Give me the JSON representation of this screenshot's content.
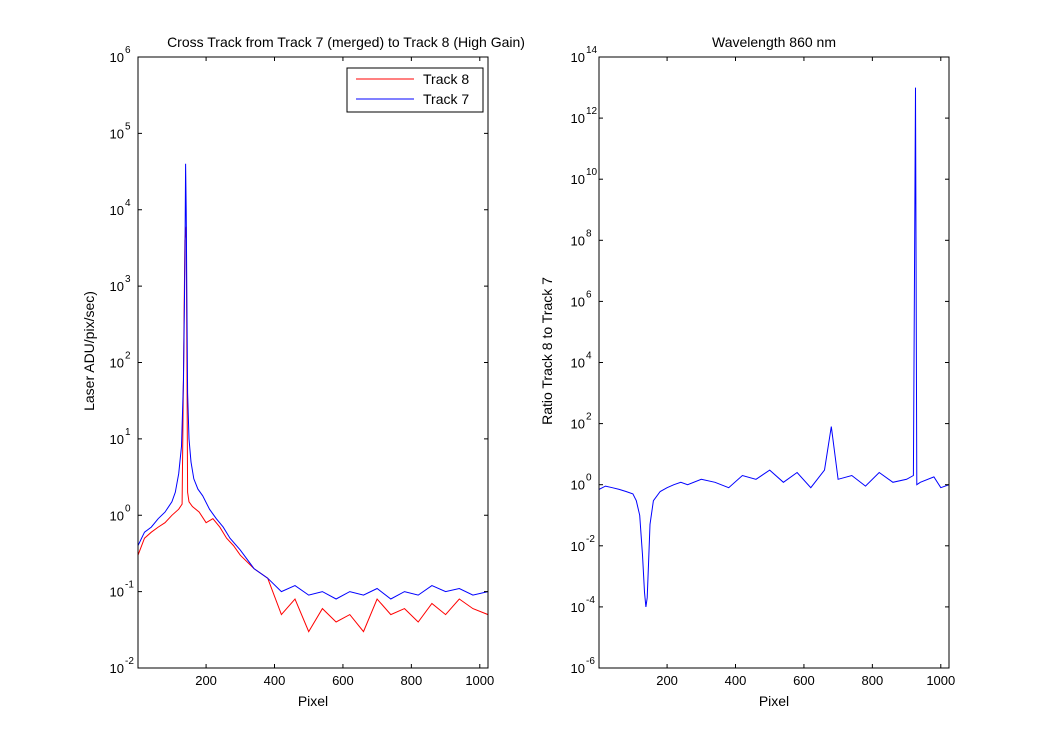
{
  "chart_data": [
    {
      "type": "line",
      "title": "Cross Track from Track 7 (merged) to Track 8 (High Gain)",
      "xlabel": "Pixel",
      "ylabel": "Laser ADU/pix/sec)",
      "xlim": [
        1,
        1024
      ],
      "ylim": [
        0.01,
        1000000
      ],
      "yscale": "log",
      "x_ticks": [
        200,
        400,
        600,
        800,
        1000
      ],
      "y_ticks": [
        {
          "base": "10",
          "exp": "-2",
          "value": 0.01
        },
        {
          "base": "10",
          "exp": "-1",
          "value": 0.1
        },
        {
          "base": "10",
          "exp": "0",
          "value": 1
        },
        {
          "base": "10",
          "exp": "1",
          "value": 10
        },
        {
          "base": "10",
          "exp": "2",
          "value": 100
        },
        {
          "base": "10",
          "exp": "3",
          "value": 1000
        },
        {
          "base": "10",
          "exp": "4",
          "value": 10000
        },
        {
          "base": "10",
          "exp": "5",
          "value": 100000
        },
        {
          "base": "10",
          "exp": "6",
          "value": 1000000
        }
      ],
      "legend_position": "top-right",
      "series": [
        {
          "name": "Track 8",
          "color": "#ff0000",
          "x": [
            1,
            20,
            40,
            60,
            80,
            100,
            120,
            130,
            138,
            142,
            146,
            150,
            160,
            180,
            200,
            220,
            240,
            260,
            280,
            300,
            340,
            380,
            420,
            460,
            500,
            540,
            580,
            620,
            660,
            700,
            740,
            780,
            820,
            860,
            900,
            940,
            980,
            1024
          ],
          "y": [
            0.3,
            0.5,
            0.6,
            0.7,
            0.8,
            1.0,
            1.2,
            1.4,
            4000,
            6000,
            2.0,
            1.5,
            1.3,
            1.1,
            0.8,
            0.9,
            0.7,
            0.5,
            0.4,
            0.3,
            0.2,
            0.15,
            0.05,
            0.08,
            0.03,
            0.06,
            0.04,
            0.05,
            0.03,
            0.08,
            0.05,
            0.06,
            0.04,
            0.07,
            0.05,
            0.08,
            0.06,
            0.05
          ]
        },
        {
          "name": "Track 7",
          "color": "#0000ff",
          "x": [
            1,
            20,
            40,
            60,
            80,
            100,
            110,
            120,
            128,
            134,
            138,
            140,
            142,
            144,
            146,
            150,
            156,
            164,
            176,
            190,
            210,
            230,
            250,
            270,
            300,
            340,
            380,
            420,
            460,
            500,
            540,
            580,
            620,
            660,
            700,
            740,
            780,
            820,
            860,
            900,
            940,
            980,
            1024
          ],
          "y": [
            0.4,
            0.6,
            0.7,
            0.9,
            1.1,
            1.5,
            2.0,
            3.5,
            8,
            60,
            2000,
            40000,
            10000,
            600,
            40,
            10,
            5,
            3,
            2.2,
            1.8,
            1.2,
            0.9,
            0.7,
            0.5,
            0.35,
            0.2,
            0.15,
            0.1,
            0.12,
            0.09,
            0.1,
            0.08,
            0.1,
            0.09,
            0.11,
            0.08,
            0.1,
            0.09,
            0.12,
            0.1,
            0.11,
            0.09,
            0.1
          ]
        }
      ]
    },
    {
      "type": "line",
      "title": "Wavelength 860 nm",
      "xlabel": "Pixel",
      "ylabel": "Ratio Track 8 to Track 7",
      "xlim": [
        1,
        1024
      ],
      "ylim": [
        1e-06,
        100000000000000
      ],
      "yscale": "log",
      "x_ticks": [
        200,
        400,
        600,
        800,
        1000
      ],
      "y_ticks": [
        {
          "base": "10",
          "exp": "-6",
          "value": 1e-06
        },
        {
          "base": "10",
          "exp": "-4",
          "value": 0.0001
        },
        {
          "base": "10",
          "exp": "-2",
          "value": 0.01
        },
        {
          "base": "10",
          "exp": "0",
          "value": 1
        },
        {
          "base": "10",
          "exp": "2",
          "value": 100
        },
        {
          "base": "10",
          "exp": "4",
          "value": 10000
        },
        {
          "base": "10",
          "exp": "6",
          "value": 1000000
        },
        {
          "base": "10",
          "exp": "8",
          "value": 100000000
        },
        {
          "base": "10",
          "exp": "10",
          "value": 10000000000
        },
        {
          "base": "10",
          "exp": "12",
          "value": 1000000000000
        },
        {
          "base": "10",
          "exp": "14",
          "value": 100000000000000
        }
      ],
      "series": [
        {
          "color": "#0000ff",
          "x": [
            1,
            20,
            40,
            60,
            80,
            100,
            110,
            120,
            128,
            134,
            138,
            142,
            146,
            150,
            160,
            180,
            200,
            220,
            240,
            260,
            300,
            340,
            380,
            420,
            460,
            500,
            540,
            580,
            620,
            660,
            680,
            700,
            740,
            780,
            820,
            860,
            900,
            920,
            926,
            930,
            940,
            980,
            1000,
            1024
          ],
          "y": [
            0.7,
            0.9,
            0.8,
            0.7,
            0.6,
            0.5,
            0.3,
            0.1,
            0.005,
            0.0003,
            0.0001,
            0.0002,
            0.003,
            0.05,
            0.3,
            0.6,
            0.8,
            1.0,
            1.2,
            1.0,
            1.5,
            1.2,
            0.8,
            2.0,
            1.5,
            3.0,
            1.2,
            2.5,
            0.8,
            3.0,
            80,
            1.5,
            2.0,
            0.9,
            2.5,
            1.2,
            1.5,
            2.0,
            10000000000000,
            1.0,
            1.2,
            1.8,
            0.8,
            1.0
          ]
        }
      ]
    }
  ]
}
